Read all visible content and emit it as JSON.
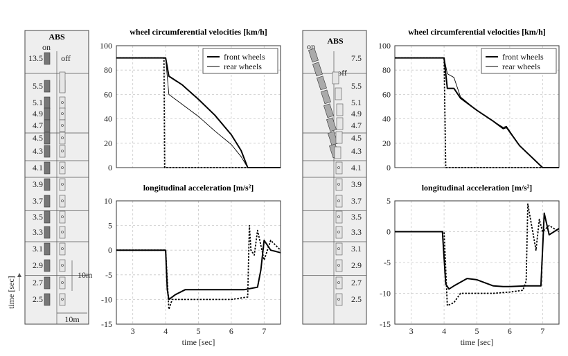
{
  "colors": {
    "line": "#000000",
    "grid": "#c8c8c8",
    "panel": "#eeeeee",
    "on_strip": "#777777",
    "off_strip": "#e6e6e6"
  },
  "left_panel": {
    "title": "ABS",
    "on_label": "on",
    "off_label": "off",
    "time_labels": [
      "13.5",
      "5.5",
      "5.1",
      "4.9",
      "4.7",
      "4.5",
      "4.3",
      "4.1",
      "3.9",
      "3.7",
      "3.5",
      "3.3",
      "3.1",
      "2.9",
      "2.7",
      "2.5"
    ],
    "scale_vertical": "10m",
    "scale_horizontal": "10m",
    "time_axis_label": "time [sec]"
  },
  "right_panel": {
    "title": "ABS",
    "on_label": "on",
    "off_label": "off",
    "time_labels": [
      "7.5",
      "5.5",
      "5.1",
      "4.9",
      "4.7",
      "4.5",
      "4.3",
      "4.1",
      "3.9",
      "3.7",
      "3.5",
      "3.3",
      "3.1",
      "2.9",
      "2.7",
      "2.5"
    ]
  },
  "chart_data": [
    {
      "type": "line",
      "title": "wheel circumferential velocities [km/h]",
      "xlabel": "",
      "ylabel": "",
      "xlim": [
        2.5,
        7.5
      ],
      "ylim": [
        0,
        100
      ],
      "xticks": [],
      "yticks": [
        0,
        20,
        40,
        60,
        80,
        100
      ],
      "grid": true,
      "legend": "top-right",
      "series": [
        {
          "name": "front wheels",
          "style": "thick",
          "x": [
            2.5,
            4.0,
            4.1,
            4.5,
            5.0,
            5.5,
            6.0,
            6.3,
            6.5,
            7.5
          ],
          "y": [
            90,
            90,
            75,
            68,
            56,
            43,
            27,
            14,
            0,
            0
          ]
        },
        {
          "name": "rear wheels",
          "style": "thin",
          "x": [
            2.5,
            4.0,
            4.1,
            4.5,
            5.0,
            5.5,
            6.0,
            6.3,
            6.5,
            7.5
          ],
          "y": [
            90,
            90,
            60,
            52,
            42,
            30,
            19,
            9,
            0,
            0
          ]
        },
        {
          "style": "dotted",
          "x": [
            2.5,
            3.95,
            3.97,
            7.5
          ],
          "y": [
            90,
            90,
            0,
            0
          ]
        }
      ]
    },
    {
      "type": "line",
      "title": "longitudinal acceleration [m/s²]",
      "xlabel": "time [sec]",
      "ylabel": "",
      "xlim": [
        2.5,
        7.5
      ],
      "ylim": [
        -15,
        10
      ],
      "xticks": [
        3,
        4,
        5,
        6,
        7
      ],
      "yticks": [
        -15,
        -10,
        -5,
        0,
        5,
        10
      ],
      "grid": true,
      "series": [
        {
          "style": "thick",
          "x": [
            2.5,
            4.0,
            4.05,
            4.1,
            4.3,
            4.6,
            5.0,
            5.5,
            6.0,
            6.4,
            6.8,
            6.9,
            7.0,
            7.2,
            7.5
          ],
          "y": [
            0,
            0,
            -8,
            -10,
            -9,
            -8,
            -8,
            -8,
            -8,
            -8,
            -7.5,
            -4,
            2,
            0,
            -0.5
          ]
        },
        {
          "style": "dotted",
          "x": [
            2.5,
            4.0,
            4.1,
            4.2,
            4.5,
            5.0,
            6.0,
            6.5,
            6.55,
            6.6,
            6.7,
            6.8,
            7.0,
            7.2,
            7.5
          ],
          "y": [
            0,
            0,
            -12,
            -10,
            -10,
            -10,
            -10,
            -9.5,
            5,
            0,
            -1,
            4,
            -2,
            2,
            0
          ]
        }
      ]
    },
    {
      "type": "line",
      "title": "wheel circumferential velocities [km/h]",
      "xlabel": "",
      "ylabel": "",
      "xlim": [
        2.5,
        7.5
      ],
      "ylim": [
        0,
        100
      ],
      "xticks": [],
      "yticks": [
        0,
        20,
        40,
        60,
        80,
        100
      ],
      "grid": true,
      "legend": "top-right",
      "series": [
        {
          "name": "front wheels",
          "style": "thick",
          "x": [
            2.5,
            4.0,
            4.1,
            4.3,
            4.5,
            5.0,
            5.5,
            5.8,
            5.9,
            6.3,
            7.0,
            7.5
          ],
          "y": [
            90,
            90,
            65,
            65,
            57,
            47,
            38,
            32,
            33,
            18,
            0,
            0
          ]
        },
        {
          "name": "rear wheels",
          "style": "thin",
          "x": [
            2.5,
            4.0,
            4.1,
            4.3,
            4.5,
            5.0,
            5.5,
            5.8,
            5.9,
            6.3,
            7.0,
            7.5
          ],
          "y": [
            90,
            90,
            77,
            74,
            58,
            47,
            38,
            33,
            34,
            18,
            0,
            0
          ]
        },
        {
          "style": "dotted",
          "x": [
            2.5,
            4.0,
            4.05,
            7.5
          ],
          "y": [
            90,
            90,
            0,
            0
          ]
        }
      ]
    },
    {
      "type": "line",
      "title": "longitudinal acceleration [m/s²]",
      "xlabel": "time [sec]",
      "ylabel": "",
      "xlim": [
        2.5,
        7.5
      ],
      "ylim": [
        -15,
        5
      ],
      "xticks": [
        3,
        4,
        5,
        6,
        7
      ],
      "yticks": [
        -15,
        -10,
        -5,
        0,
        5
      ],
      "grid": true,
      "series": [
        {
          "style": "thick",
          "x": [
            2.5,
            3.95,
            4.05,
            4.15,
            4.3,
            4.7,
            5.0,
            5.5,
            5.8,
            6.0,
            6.5,
            6.95,
            7.05,
            7.2,
            7.5
          ],
          "y": [
            0,
            0,
            -8.5,
            -9.3,
            -8.8,
            -7.6,
            -7.8,
            -8.8,
            -8.9,
            -8.9,
            -8.8,
            -8.8,
            3,
            -0.5,
            0.5
          ]
        },
        {
          "style": "dotted",
          "x": [
            2.5,
            4.0,
            4.1,
            4.3,
            4.5,
            5.0,
            5.5,
            6.0,
            6.4,
            6.5,
            6.55,
            6.6,
            6.8,
            6.9,
            7.0,
            7.2,
            7.5
          ],
          "y": [
            0,
            0,
            -12,
            -11.5,
            -10,
            -10,
            -10,
            -9.8,
            -9.5,
            -8,
            4.5,
            3,
            -3,
            2,
            0,
            1,
            0
          ]
        }
      ]
    }
  ]
}
